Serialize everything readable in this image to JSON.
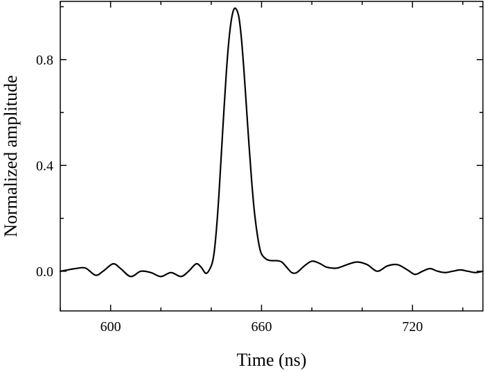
{
  "chart_data": {
    "type": "line",
    "title": "",
    "xlabel": "Time (ns)",
    "ylabel": "Normalized amplitude",
    "xlim": [
      580,
      748
    ],
    "ylim": [
      -0.15,
      1.02
    ],
    "xticks": [
      600,
      660,
      720
    ],
    "xtick_labels": [
      "600",
      "660",
      "720"
    ],
    "yticks": [
      0.0,
      0.4,
      0.8
    ],
    "ytick_labels": [
      "0.0",
      "0.4",
      "0.8"
    ],
    "minor_x_step": 20,
    "minor_y_step": 0.2,
    "grid": false,
    "series": [
      {
        "line_color": "#000000",
        "x": [
          580,
          583,
          586,
          590,
          594,
          597,
          601,
          604,
          608,
          612,
          616,
          620,
          624,
          628,
          631,
          634,
          636,
          638,
          640,
          641,
          642,
          643,
          644,
          645,
          646,
          647,
          648,
          649,
          650,
          651,
          652,
          653,
          654,
          655,
          656,
          657,
          658,
          659,
          660,
          662,
          664,
          666,
          668,
          670,
          672,
          674,
          677,
          680,
          683,
          686,
          690,
          694,
          698,
          702,
          706,
          710,
          714,
          718,
          721,
          724,
          727,
          730,
          733,
          736,
          739,
          742,
          745,
          748
        ],
        "y": [
          0.0,
          0.005,
          0.01,
          0.012,
          -0.015,
          0.0,
          0.028,
          0.01,
          -0.02,
          0.0,
          -0.005,
          -0.02,
          -0.005,
          -0.02,
          0.0,
          0.028,
          0.015,
          -0.008,
          0.02,
          0.06,
          0.15,
          0.28,
          0.44,
          0.6,
          0.75,
          0.87,
          0.95,
          0.99,
          0.99,
          0.96,
          0.88,
          0.76,
          0.62,
          0.48,
          0.35,
          0.24,
          0.16,
          0.1,
          0.065,
          0.045,
          0.04,
          0.04,
          0.035,
          0.015,
          -0.005,
          -0.005,
          0.02,
          0.038,
          0.03,
          0.015,
          0.012,
          0.025,
          0.035,
          0.025,
          0.0,
          0.02,
          0.025,
          0.005,
          -0.012,
          0.0,
          0.01,
          0.0,
          -0.005,
          0.0,
          0.005,
          0.0,
          -0.005,
          0.0
        ]
      }
    ]
  }
}
